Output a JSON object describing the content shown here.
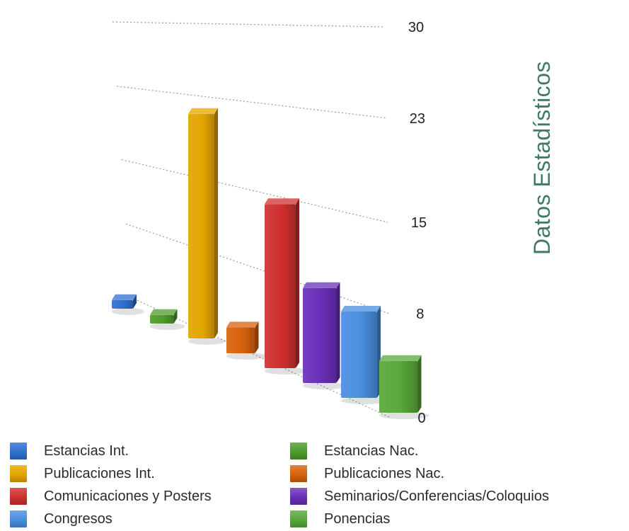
{
  "chart_data": {
    "type": "bar",
    "title": "Datos Estadísticos",
    "yticks": [
      "0",
      "8",
      "15",
      "23",
      "30"
    ],
    "ylim": [
      0,
      30
    ],
    "categories": [
      "Estancias Int.",
      "Estancias Nac.",
      "Publicaciones Int.",
      "Publicaciones Nac.",
      "Comunicaciones y Posters",
      "Seminarios/Conferencias/Coloquios",
      "Congresos",
      "Ponencias"
    ],
    "values": [
      1,
      1,
      26,
      3,
      19,
      11,
      10,
      6
    ],
    "colors": [
      "#2f6fcf",
      "#4f9b2c",
      "#e3a600",
      "#d8620c",
      "#cf2f2f",
      "#6a2fb8",
      "#4a8fe0",
      "#58a83a"
    ],
    "legend_position": "bottom",
    "grid": true
  }
}
